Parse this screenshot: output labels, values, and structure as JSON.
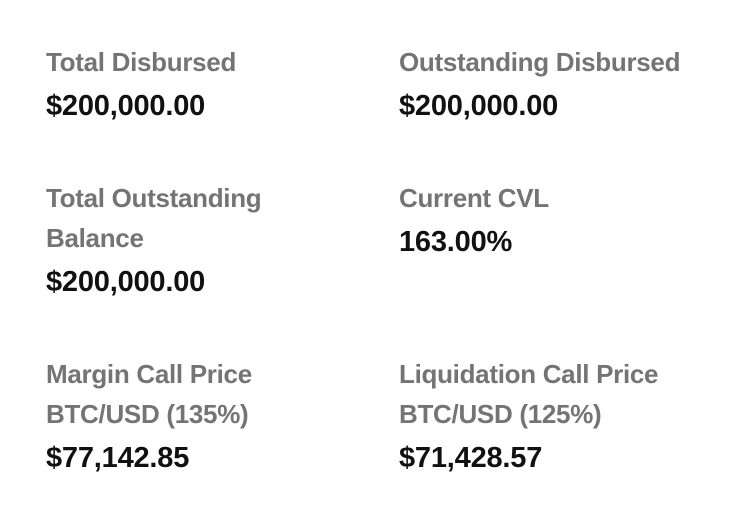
{
  "stats": [
    {
      "label": "Total Disbursed",
      "value": "$200,000.00"
    },
    {
      "label": "Outstanding Disbursed",
      "value": "$200,000.00"
    },
    {
      "label": "Total Outstanding\nBalance",
      "value": "$200,000.00"
    },
    {
      "label": "Current CVL",
      "value": "163.00%"
    },
    {
      "label": "Margin Call Price\nBTC/USD (135%)",
      "value": "$77,142.85"
    },
    {
      "label": "Liquidation Call Price\nBTC/USD (125%)",
      "value": "$71,428.57"
    }
  ],
  "colors": {
    "label": "#747474",
    "value": "#111111",
    "background": "#ffffff"
  }
}
